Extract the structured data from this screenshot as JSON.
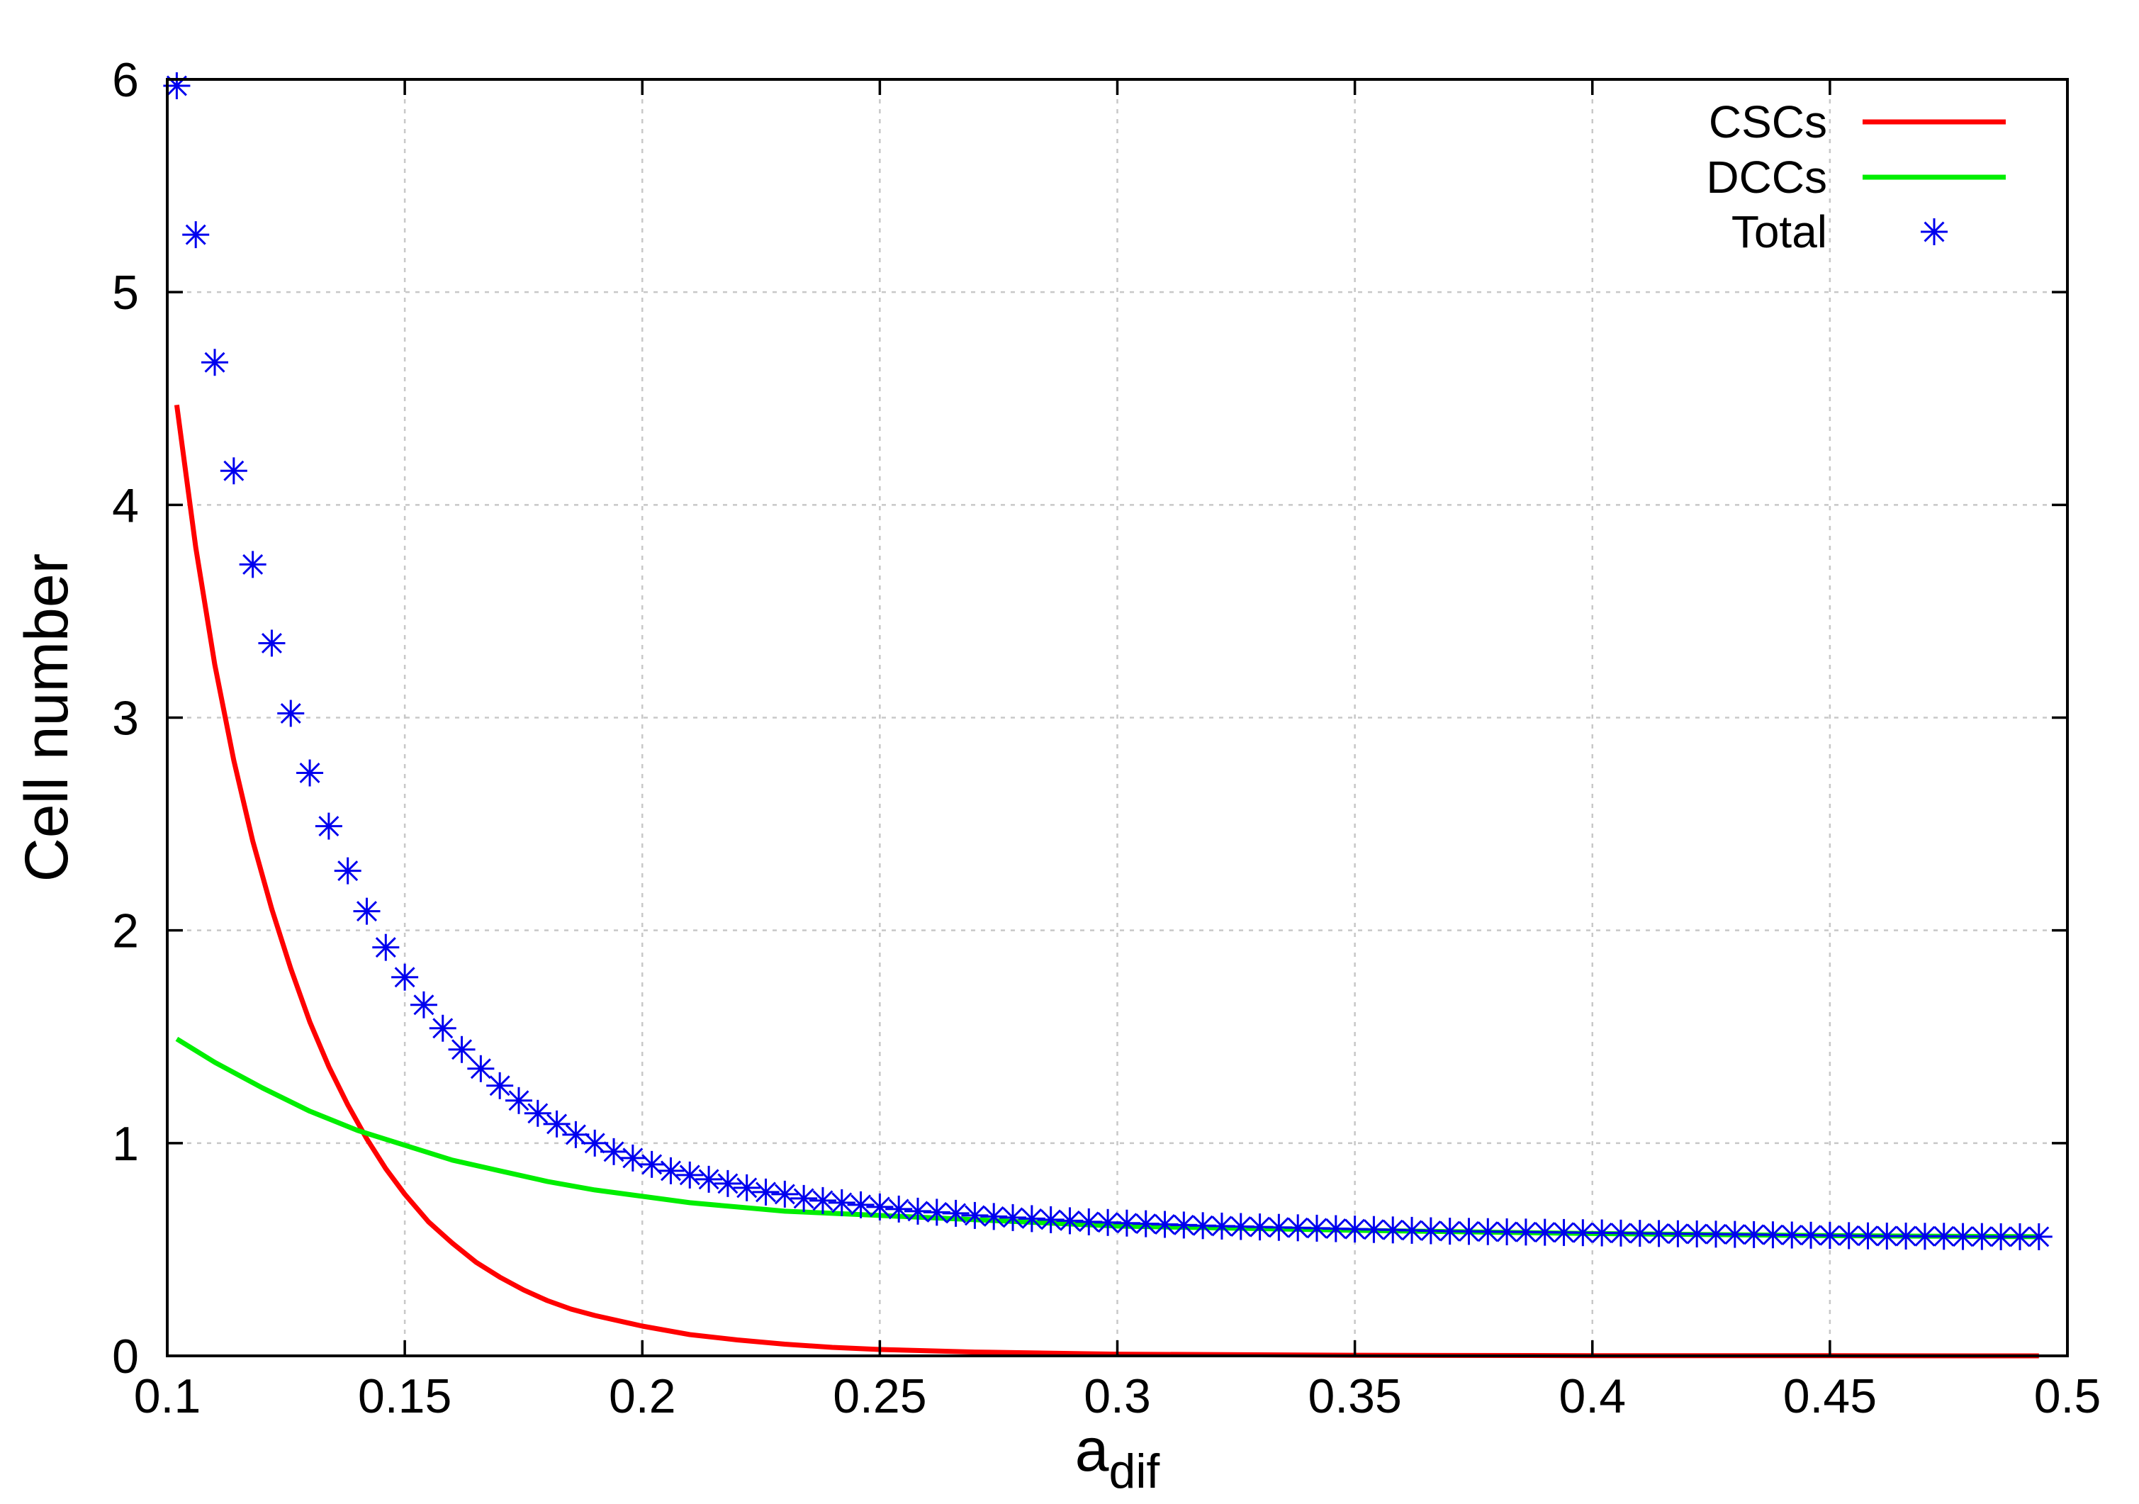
{
  "chart_data": {
    "type": "line",
    "xlabel": "a",
    "xlabel_subscript": "dif",
    "ylabel": "Cell number",
    "xlim": [
      0.1,
      0.5
    ],
    "ylim": [
      0,
      6
    ],
    "grid": true,
    "legend_position": "top-right",
    "x_ticks": [
      "0.1",
      "0.15",
      "0.2",
      "0.25",
      "0.3",
      "0.35",
      "0.4",
      "0.45",
      "0.5"
    ],
    "y_ticks": [
      "0",
      "1",
      "2",
      "3",
      "4",
      "5",
      "6"
    ],
    "x_tick_values": [
      0.1,
      0.15,
      0.2,
      0.25,
      0.3,
      0.35,
      0.4,
      0.45,
      0.5
    ],
    "y_tick_values": [
      0,
      1,
      2,
      3,
      4,
      5,
      6
    ],
    "series": [
      {
        "name": "CSCs",
        "style": "line",
        "color": "#ff0000",
        "x": [
          0.102,
          0.106,
          0.11,
          0.114,
          0.118,
          0.122,
          0.126,
          0.13,
          0.134,
          0.138,
          0.142,
          0.146,
          0.15,
          0.155,
          0.16,
          0.165,
          0.17,
          0.175,
          0.18,
          0.185,
          0.19,
          0.2,
          0.21,
          0.22,
          0.23,
          0.24,
          0.25,
          0.27,
          0.3,
          0.35,
          0.4,
          0.45,
          0.494
        ],
        "y": [
          4.47,
          3.8,
          3.25,
          2.8,
          2.42,
          2.1,
          1.82,
          1.57,
          1.36,
          1.18,
          1.02,
          0.88,
          0.76,
          0.63,
          0.53,
          0.44,
          0.37,
          0.31,
          0.26,
          0.22,
          0.19,
          0.14,
          0.1,
          0.075,
          0.055,
          0.04,
          0.03,
          0.018,
          0.008,
          0.003,
          0.001,
          0.0005,
          0.0
        ]
      },
      {
        "name": "DCCs",
        "style": "line",
        "color": "#00ee00",
        "x": [
          0.102,
          0.11,
          0.12,
          0.13,
          0.14,
          0.15,
          0.16,
          0.17,
          0.18,
          0.19,
          0.2,
          0.21,
          0.22,
          0.23,
          0.24,
          0.25,
          0.27,
          0.3,
          0.35,
          0.4,
          0.45,
          0.494
        ],
        "y": [
          1.49,
          1.38,
          1.26,
          1.15,
          1.06,
          0.99,
          0.92,
          0.87,
          0.82,
          0.78,
          0.75,
          0.72,
          0.7,
          0.68,
          0.67,
          0.66,
          0.64,
          0.61,
          0.59,
          0.575,
          0.565,
          0.56
        ]
      },
      {
        "name": "Total",
        "style": "points",
        "marker": "asterisk",
        "color": "#0000ee",
        "x": [
          0.102,
          0.106,
          0.11,
          0.114,
          0.118,
          0.122,
          0.126,
          0.13,
          0.134,
          0.138,
          0.142,
          0.146,
          0.15,
          0.154,
          0.158,
          0.162,
          0.166,
          0.17,
          0.174,
          0.178,
          0.182,
          0.186,
          0.19,
          0.194,
          0.198,
          0.202,
          0.206,
          0.21,
          0.214,
          0.218,
          0.222,
          0.226,
          0.23,
          0.234,
          0.238,
          0.242,
          0.246,
          0.25,
          0.254,
          0.258,
          0.262,
          0.266,
          0.27,
          0.274,
          0.278,
          0.282,
          0.286,
          0.29,
          0.294,
          0.298,
          0.302,
          0.306,
          0.31,
          0.314,
          0.318,
          0.322,
          0.326,
          0.33,
          0.334,
          0.338,
          0.342,
          0.346,
          0.35,
          0.354,
          0.358,
          0.362,
          0.366,
          0.37,
          0.374,
          0.378,
          0.382,
          0.386,
          0.39,
          0.394,
          0.398,
          0.402,
          0.406,
          0.41,
          0.414,
          0.418,
          0.422,
          0.426,
          0.43,
          0.434,
          0.438,
          0.442,
          0.446,
          0.45,
          0.454,
          0.458,
          0.462,
          0.466,
          0.47,
          0.474,
          0.478,
          0.482,
          0.486,
          0.49,
          0.494
        ],
        "y": [
          5.97,
          5.27,
          4.67,
          4.16,
          3.72,
          3.35,
          3.02,
          2.74,
          2.49,
          2.28,
          2.09,
          1.92,
          1.78,
          1.65,
          1.54,
          1.44,
          1.35,
          1.27,
          1.2,
          1.14,
          1.09,
          1.04,
          1.0,
          0.96,
          0.93,
          0.9,
          0.87,
          0.85,
          0.83,
          0.81,
          0.79,
          0.77,
          0.76,
          0.74,
          0.73,
          0.72,
          0.71,
          0.7,
          0.69,
          0.68,
          0.675,
          0.67,
          0.66,
          0.655,
          0.65,
          0.645,
          0.64,
          0.635,
          0.63,
          0.627,
          0.624,
          0.621,
          0.618,
          0.615,
          0.612,
          0.61,
          0.608,
          0.606,
          0.604,
          0.602,
          0.6,
          0.598,
          0.596,
          0.594,
          0.592,
          0.59,
          0.588,
          0.586,
          0.585,
          0.584,
          0.583,
          0.582,
          0.581,
          0.58,
          0.579,
          0.578,
          0.577,
          0.576,
          0.575,
          0.574,
          0.573,
          0.572,
          0.571,
          0.57,
          0.569,
          0.568,
          0.567,
          0.566,
          0.565,
          0.564,
          0.563,
          0.563,
          0.562,
          0.562,
          0.561,
          0.561,
          0.56,
          0.56,
          0.56
        ]
      }
    ]
  }
}
